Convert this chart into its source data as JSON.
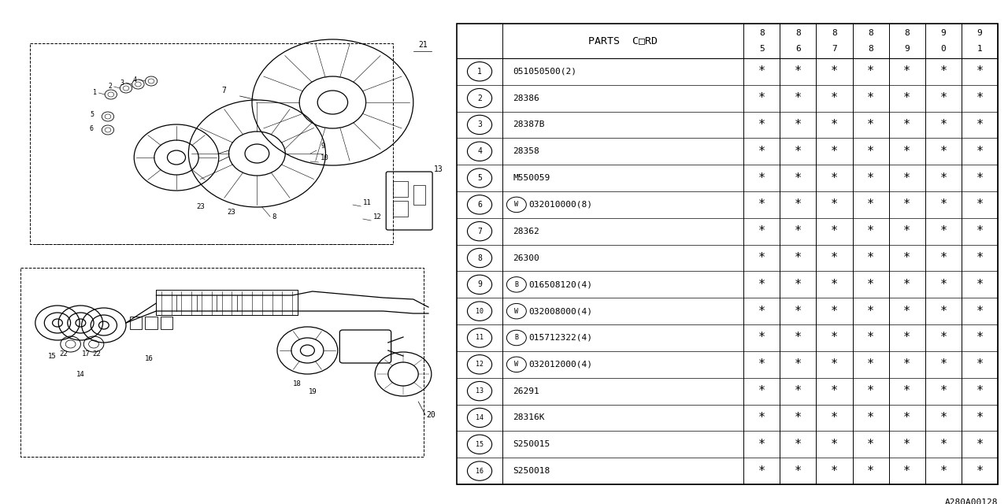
{
  "code": "A280A00128",
  "rows": [
    {
      "num": "1",
      "prefix": "",
      "code": "051050500(2)"
    },
    {
      "num": "2",
      "prefix": "",
      "code": "28386"
    },
    {
      "num": "3",
      "prefix": "",
      "code": "28387B"
    },
    {
      "num": "4",
      "prefix": "",
      "code": "28358"
    },
    {
      "num": "5",
      "prefix": "",
      "code": "M550059"
    },
    {
      "num": "6",
      "prefix": "W",
      "code": "032010000(8)"
    },
    {
      "num": "7",
      "prefix": "",
      "code": "28362"
    },
    {
      "num": "8",
      "prefix": "",
      "code": "26300"
    },
    {
      "num": "9",
      "prefix": "B",
      "code": "016508120(4)"
    },
    {
      "num": "10",
      "prefix": "W",
      "code": "032008000(4)"
    },
    {
      "num": "11",
      "prefix": "B",
      "code": "015712322(4)"
    },
    {
      "num": "12",
      "prefix": "W",
      "code": "032012000(4)"
    },
    {
      "num": "13",
      "prefix": "",
      "code": "26291"
    },
    {
      "num": "14",
      "prefix": "",
      "code": "28316K"
    },
    {
      "num": "15",
      "prefix": "",
      "code": "S250015"
    },
    {
      "num": "16",
      "prefix": "",
      "code": "S250018"
    }
  ],
  "year_top": [
    "8",
    "8",
    "8",
    "8",
    "8",
    "9",
    "9"
  ],
  "year_bottom": [
    "5",
    "6",
    "7",
    "8",
    "9",
    "0",
    "1"
  ],
  "bg_color": "#ffffff",
  "lc": "#000000"
}
